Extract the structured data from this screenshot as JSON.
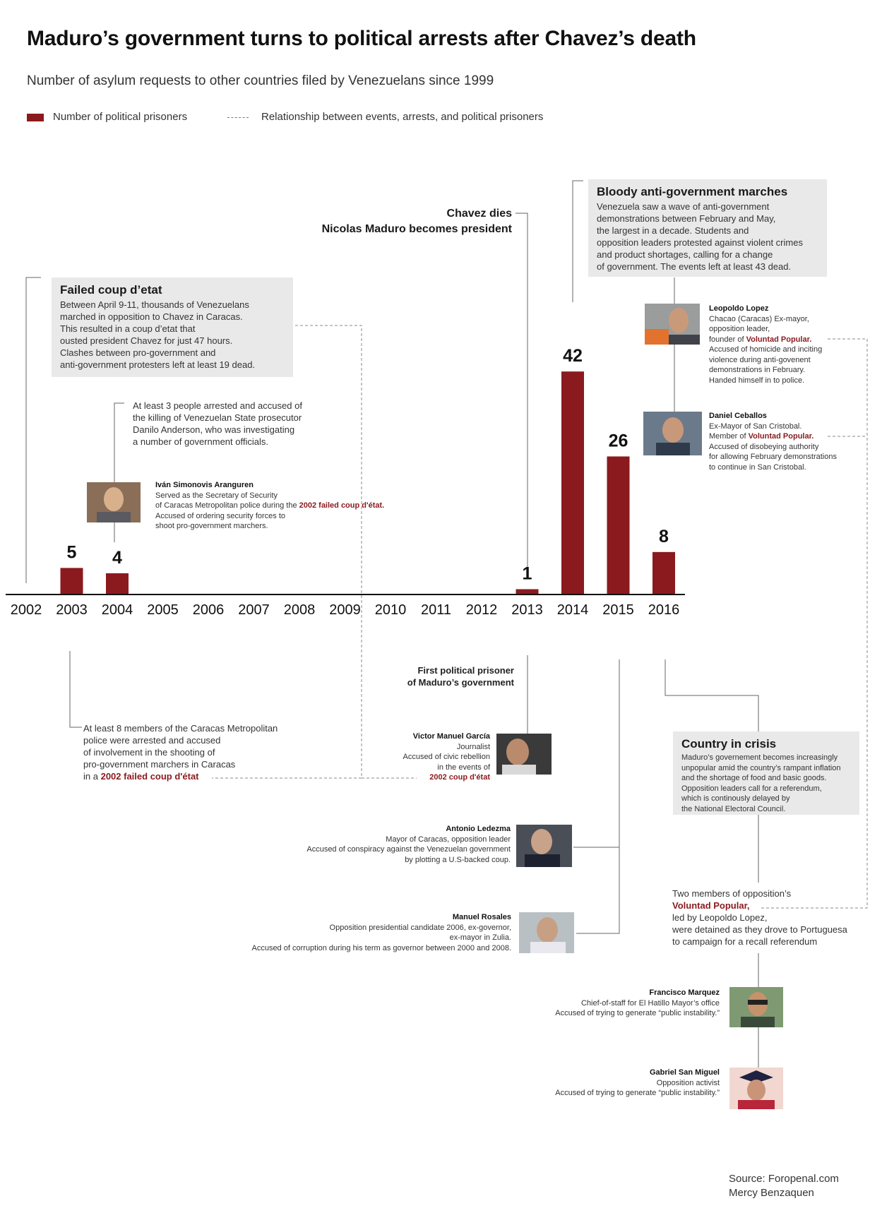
{
  "header": {
    "title": "Maduro’s government turns to political arrests after Chavez’s death",
    "subtitle": "Number of asylum requests to other countries filed by Venezuelans since 1999"
  },
  "legend": {
    "bars_label": "Number of political prisoners",
    "dashed_label": "Relationship between events, arrests, and political prisoners"
  },
  "colors": {
    "bar": "#8b1a1e",
    "accent": "#8b1a1e",
    "box_bg": "#e9e9e9"
  },
  "chart_data": {
    "type": "bar",
    "title": "Maduro’s government turns to political arrests after Chavez’s death",
    "subtitle": "Number of asylum requests to other countries filed by Venezuelans since 1999",
    "categories": [
      "2002",
      "2003",
      "2004",
      "2005",
      "2006",
      "2007",
      "2008",
      "2009",
      "2010",
      "2011",
      "2012",
      "2013",
      "2014",
      "2015",
      "2016"
    ],
    "series": [
      {
        "name": "Number of political prisoners",
        "values": [
          null,
          5,
          4,
          null,
          null,
          null,
          null,
          null,
          null,
          null,
          null,
          1,
          42,
          26,
          8
        ]
      }
    ],
    "data_labels": [
      "",
      "5",
      "4",
      "",
      "",
      "",
      "",
      "",
      "",
      "",
      "",
      "1",
      "42",
      "26",
      "8"
    ],
    "xlabel": "",
    "ylabel": "",
    "ylim": [
      0,
      45
    ],
    "grid": false,
    "legend": "top-left"
  },
  "events": {
    "coup": {
      "title": "Failed coup d’etat",
      "text": "Between April 9-11, thousands of Venezuelans\nmarched in opposition to Chavez in Caracas.\nThis resulted in a coup d’etat that\nousted president Chavez for just 47 hours.\nClashes between pro-government and\nanti-government protesters left at least 19 dead."
    },
    "chavez": {
      "line1": "Chavez dies",
      "line2": "Nicolas Maduro becomes president"
    },
    "marches": {
      "title": "Bloody anti-government marches",
      "text": "Venezuela saw a wave of anti-government\ndemonstrations between February and May,\nthe largest in a decade. Students and\nopposition leaders protested against violent crimes\nand product shortages, calling for a change\nof government. The events left at least 43 dead."
    },
    "crisis": {
      "title": "Country in crisis",
      "text": "Maduro’s governement becomes increasingly\nunpopular amid the country’s rampant inflation\nand the shortage of food and basic goods.\nOpposition leaders call for a referendum,\nwhich is continously delayed by\nthe National Electoral Council."
    }
  },
  "notes": {
    "prosecutor": "At least 3 people arrested and accused of\nthe killing of Venezuelan State prosecutor\nDanilo Anderson, who was investigating\na number of government officials.",
    "police_text": "At least 8 members of the Caracas Metropolitan\npolice were arrested and accused\nof involvement in the shooting of\npro-government marchers in Caracas\nin a",
    "police_link": "2002 failed coup d'état",
    "first_prisoner": "First political prisoner\nof Maduro’s government",
    "voluntad_intro": "Two members of opposition’s",
    "voluntad_link": "Voluntad Popular,",
    "voluntad_rest": "led by Leopoldo Lopez,\nwere detained as they drove to Portuguesa\nto campaign for a recall referendum"
  },
  "people": {
    "simonovis": {
      "name": "Iván Simonovis Aranguren",
      "text1": "Served as the Secretary of Security\nof Caracas Metropolitan police during the",
      "link": "2002 failed coup d'état.",
      "text2": "Accused of ordering security forces to\nshoot pro-government marchers."
    },
    "lopez": {
      "name": "Leopoldo Lopez",
      "text1": "Chacao (Caracas) Ex-mayor,\nopposition leader,\nfounder of",
      "link": "Voluntad Popular.",
      "text2": "Accused of homicide and inciting\nviolence during anti-govenent\ndemonstrations in February.\nHanded himself in to police."
    },
    "ceballos": {
      "name": "Daniel Ceballos",
      "text1": "Ex-Mayor of San Cristobal.\nMember of",
      "link": "Voluntad Popular.",
      "text2": "Accused of disobeying authority\nfor allowing February demonstrations\nto continue in San Cristobal."
    },
    "garcia": {
      "name": "Victor Manuel García",
      "text1": "Journalist\nAccused of civic rebellion\nin the events of",
      "link": "2002 coup d'état"
    },
    "ledezma": {
      "name": "Antonio Ledezma",
      "text1": "Mayor of Caracas, opposition leader\nAccused of conspiracy against the Venezuelan government\nby plotting a U.S-backed coup."
    },
    "rosales": {
      "name": "Manuel Rosales",
      "text1": "Opposition presidential candidate 2006,  ex-governor,\nex-mayor in Zulia.\nAccused of corruption during his term as governor between 2000 and 2008."
    },
    "marquez": {
      "name": "Francisco Marquez",
      "text1": "Chief-of-staff for El Hatillo Mayor’s office\nAccused of trying to generate “public instability.”"
    },
    "sanmiguel": {
      "name": "Gabriel San Miguel",
      "text1": "Opposition activist\nAccused of trying to generate “public instability.”"
    }
  },
  "photos": {
    "simonovis": "portrait-photo",
    "lopez": "portrait-photo",
    "ceballos": "portrait-photo",
    "garcia": "portrait-photo",
    "ledezma": "portrait-photo",
    "rosales": "portrait-photo",
    "marquez": "portrait-photo",
    "sanmiguel": "graduation-portrait-photo"
  },
  "source": {
    "line1": "Source: Foropenal.com",
    "line2": "Mercy Benzaquen"
  }
}
